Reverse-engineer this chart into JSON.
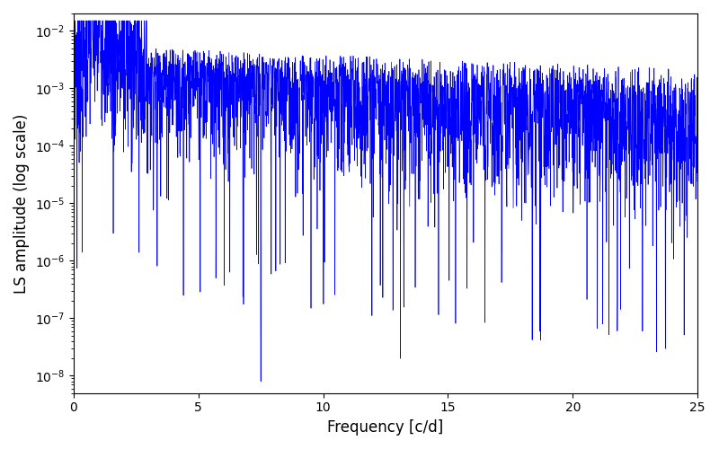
{
  "title": "",
  "xlabel": "Frequency [c/d]",
  "ylabel": "LS amplitude (log scale)",
  "xlim": [
    0,
    25
  ],
  "ylim": [
    5e-09,
    0.02
  ],
  "yscale": "log",
  "yticks": [
    1e-08,
    1e-07,
    1e-06,
    1e-05,
    0.0001,
    0.001,
    0.01
  ],
  "line_color": "#0000FF",
  "line_width": 0.5,
  "figsize": [
    8.0,
    5.0
  ],
  "dpi": 100,
  "freq_max": 25.0,
  "n_points": 3000,
  "seed": 7,
  "background_color": "#ffffff"
}
